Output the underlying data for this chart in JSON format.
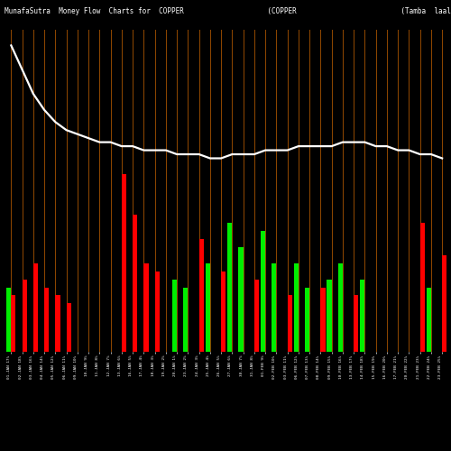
{
  "title": "MunafaSutra  Money Flow  Charts for  COPPER                    (COPPER                         (Tamba  laal dhatu) MunafaSutra",
  "background_color": "#000000",
  "bar_color_green": "#00ee00",
  "bar_color_red": "#ff0000",
  "line_color": "#ffffff",
  "grid_color": "#8B4500",
  "n_bars": 40,
  "green_vals": [
    16,
    0,
    0,
    0,
    0,
    0,
    0,
    0,
    0,
    0,
    0,
    0,
    0,
    0,
    0,
    18,
    16,
    0,
    22,
    0,
    32,
    26,
    0,
    30,
    22,
    0,
    22,
    16,
    0,
    18,
    22,
    0,
    18,
    0,
    0,
    0,
    0,
    0,
    16,
    0
  ],
  "red_vals": [
    14,
    18,
    22,
    16,
    14,
    12,
    0,
    0,
    0,
    0,
    44,
    34,
    22,
    20,
    0,
    0,
    0,
    28,
    0,
    20,
    0,
    0,
    18,
    0,
    0,
    14,
    0,
    0,
    16,
    0,
    0,
    14,
    0,
    0,
    0,
    0,
    0,
    32,
    0,
    24
  ],
  "line_vals": [
    76,
    70,
    64,
    60,
    57,
    55,
    54,
    53,
    52,
    52,
    51,
    51,
    50,
    50,
    50,
    49,
    49,
    49,
    48,
    48,
    49,
    49,
    49,
    50,
    50,
    50,
    51,
    51,
    51,
    51,
    52,
    52,
    52,
    51,
    51,
    50,
    50,
    49,
    49,
    48
  ],
  "tick_labels": [
    "01-JAN 17%",
    "02-JAN 18%",
    "03-JAN 16%",
    "04-JAN 14%",
    "05-JAN 12%",
    "06-JAN 11%",
    "09-JAN 10%",
    "10-JAN 9%",
    "11-JAN 8%",
    "12-JAN 7%",
    "13-JAN 6%",
    "16-JAN 5%",
    "17-JAN 4%",
    "18-JAN 3%",
    "19-JAN 2%",
    "20-JAN 1%",
    "23-JAN 2%",
    "24-JAN 3%",
    "25-JAN 4%",
    "26-JAN 5%",
    "27-JAN 6%",
    "30-JAN 7%",
    "31-JAN 8%",
    "01-FEB 9%",
    "02-FEB 10%",
    "03-FEB 11%",
    "06-FEB 12%",
    "07-FEB 13%",
    "08-FEB 14%",
    "09-FEB 15%",
    "10-FEB 16%",
    "13-FEB 17%",
    "14-FEB 18%",
    "15-FEB 19%",
    "16-FEB 20%",
    "17-FEB 21%",
    "20-FEB 22%",
    "21-FEB 23%",
    "22-FEB 24%",
    "23-FEB 25%"
  ],
  "ylim": [
    0,
    80
  ],
  "title_fontsize": 5.5,
  "tick_fontsize": 3.2
}
